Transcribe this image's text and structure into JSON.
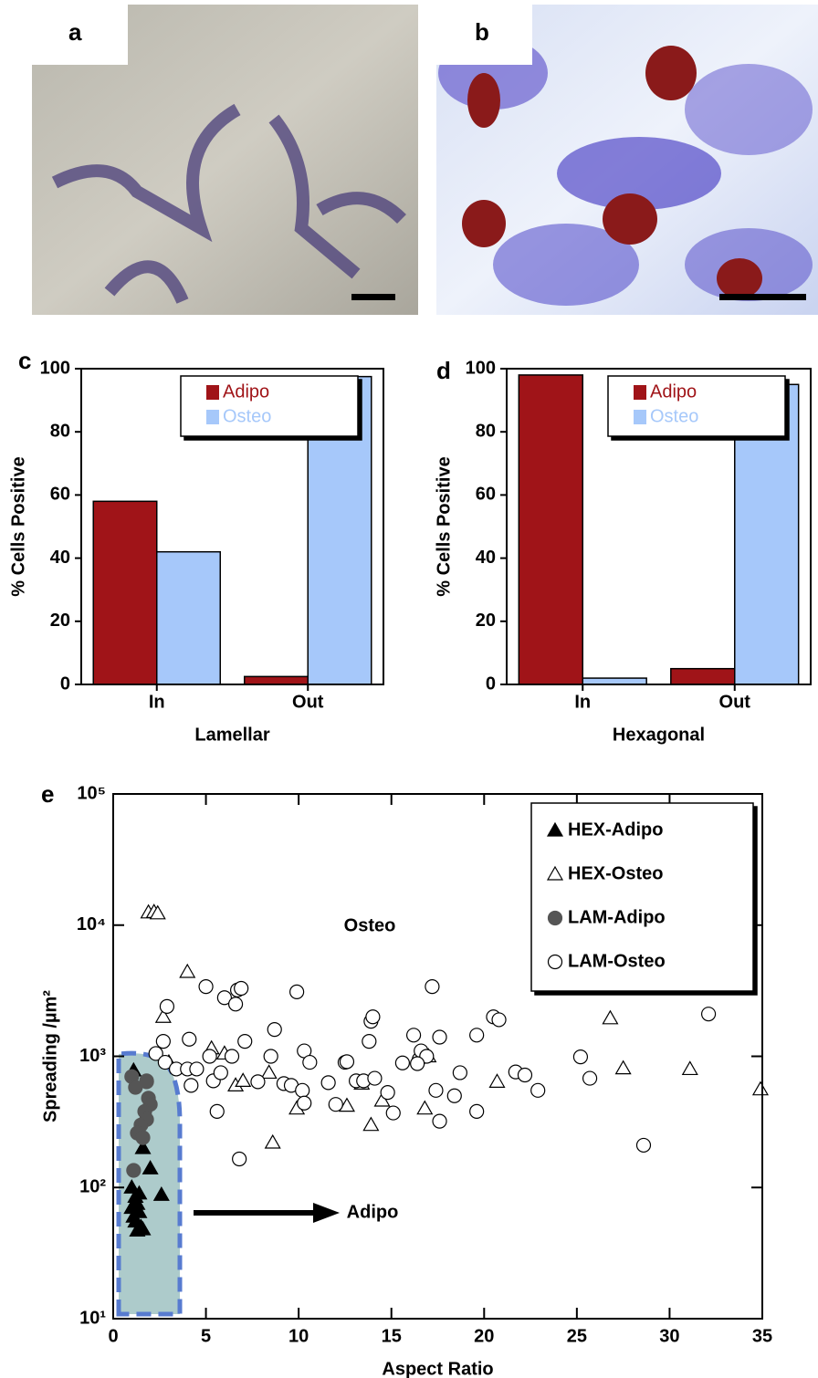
{
  "image_panels": [
    {
      "label": "a"
    },
    {
      "label": "b"
    }
  ],
  "chart_data": [
    {
      "type": "bar",
      "panel_label": "c",
      "x_label": "Lamellar",
      "y_label": "% Cells Positive",
      "categories": [
        "In",
        "Out"
      ],
      "series": [
        {
          "name": "Adipo",
          "color": "#a01418",
          "values": [
            58,
            2.5
          ]
        },
        {
          "name": "Osteo",
          "color": "#a6c8fa",
          "values": [
            42,
            97.5
          ]
        }
      ],
      "ylim": [
        0,
        100
      ],
      "yticks": [
        0,
        20,
        40,
        60,
        80,
        100
      ],
      "legend": "upper right"
    },
    {
      "type": "bar",
      "panel_label": "d",
      "x_label": "Hexagonal",
      "y_label": "% Cells Positive",
      "categories": [
        "In",
        "Out"
      ],
      "series": [
        {
          "name": "Adipo",
          "color": "#a01418",
          "values": [
            98,
            5
          ]
        },
        {
          "name": "Osteo",
          "color": "#a6c8fa",
          "values": [
            2,
            95
          ]
        }
      ],
      "ylim": [
        0,
        100
      ],
      "yticks": [
        0,
        20,
        40,
        60,
        80,
        100
      ],
      "legend": "upper right"
    },
    {
      "type": "scatter",
      "panel_label": "e",
      "x_label": "Aspect Ratio",
      "y_label": "Spreading /µm²",
      "y_scale": "log",
      "annotations": [
        "Osteo",
        "Adipo"
      ],
      "legend": "upper right",
      "xlim": [
        0,
        35
      ],
      "xticks": [
        0,
        5,
        10,
        15,
        20,
        25,
        30,
        35
      ],
      "ylim": [
        10,
        100000
      ],
      "yticks": [
        {
          "value": 10,
          "label": "10¹"
        },
        {
          "value": 100,
          "label": "10²"
        },
        {
          "value": 1000,
          "label": "10³"
        },
        {
          "value": 10000,
          "label": "10⁴"
        },
        {
          "value": 100000,
          "label": "10⁵"
        }
      ],
      "series": [
        {
          "name": "HEX-Adipo",
          "marker": "triangle",
          "filled": true,
          "color": "#000000",
          "x": [
            1.1,
            1.6,
            2.0,
            2.6,
            1.0,
            1.2,
            1.3,
            1.0,
            1.4,
            1.2,
            1.5,
            1.3,
            1.6,
            1.1,
            1.4
          ],
          "values": [
            780,
            200,
            140,
            88,
            100,
            85,
            75,
            70,
            65,
            55,
            50,
            47,
            48,
            60,
            90
          ]
        },
        {
          "name": "HEX-Osteo",
          "marker": "triangle",
          "filled": false,
          "color": "#000000",
          "x": [
            1.9,
            2.2,
            2.4,
            4.0,
            2.7,
            5.3,
            6.0,
            6.6,
            8.4,
            9.9,
            8.6,
            12.6,
            13.4,
            13.9,
            14.5,
            16.8,
            17.0,
            20.7,
            26.8,
            27.5,
            31.1,
            34.9,
            3.0,
            7.0
          ],
          "values": [
            12500,
            12600,
            12300,
            4400,
            2000,
            1150,
            1050,
            600,
            750,
            400,
            220,
            420,
            620,
            300,
            460,
            400,
            1000,
            640,
            1950,
            810,
            800,
            560,
            900,
            650
          ]
        },
        {
          "name": "LAM-Adipo",
          "marker": "circle",
          "filled": true,
          "color": "#555555",
          "x": [
            1.0,
            1.2,
            1.8,
            1.9,
            2.0,
            1.7,
            1.8,
            1.5,
            1.3,
            1.6,
            1.1,
            1.8
          ],
          "values": [
            700,
            580,
            650,
            480,
            430,
            380,
            330,
            300,
            260,
            240,
            135,
            640
          ]
        },
        {
          "name": "LAM-Osteo",
          "marker": "circle",
          "filled": false,
          "color": "#000000",
          "x": [
            2.3,
            2.9,
            2.8,
            2.7,
            3.4,
            4.0,
            4.1,
            4.2,
            4.5,
            5.0,
            5.2,
            5.4,
            5.6,
            5.8,
            6.0,
            6.4,
            6.6,
            6.7,
            6.9,
            7.1,
            6.8,
            7.8,
            8.5,
            8.7,
            9.2,
            9.6,
            9.9,
            10.2,
            10.3,
            10.6,
            10.3,
            11.6,
            12.0,
            12.5,
            12.6,
            13.1,
            13.5,
            13.8,
            13.9,
            14.0,
            14.1,
            14.8,
            15.1,
            15.6,
            16.2,
            16.5,
            16.6,
            16.9,
            17.2,
            17.4,
            17.6,
            17.6,
            18.4,
            18.7,
            19.6,
            19.6,
            20.5,
            20.8,
            21.7,
            22.2,
            22.9,
            25.2,
            25.7,
            28.6,
            32.1,
            16.4
          ],
          "values": [
            1050,
            2400,
            900,
            1300,
            800,
            800,
            1350,
            600,
            800,
            3400,
            1000,
            650,
            380,
            750,
            2800,
            1000,
            2500,
            3200,
            3300,
            1300,
            165,
            640,
            1000,
            1600,
            620,
            600,
            3100,
            550,
            1100,
            900,
            440,
            630,
            430,
            900,
            910,
            650,
            650,
            1300,
            1850,
            2000,
            680,
            530,
            370,
            890,
            1450,
            950,
            1100,
            1000,
            3400,
            550,
            320,
            1400,
            500,
            750,
            1450,
            380,
            2000,
            1900,
            760,
            720,
            550,
            990,
            680,
            210,
            2100,
            880
          ]
        }
      ]
    }
  ]
}
